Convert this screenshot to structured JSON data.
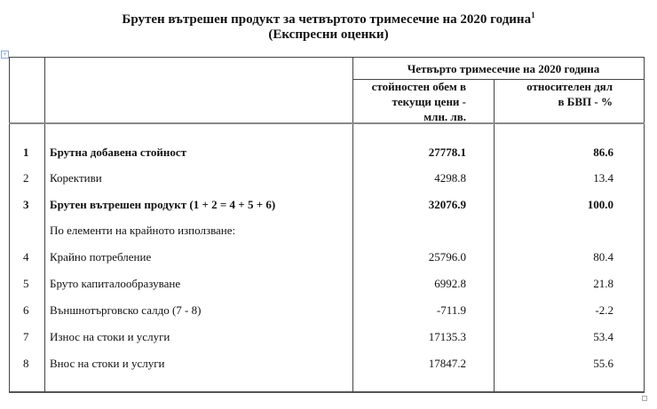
{
  "title": {
    "line1": "Брутен вътрешен продукт за четвъртото тримесечие на 2020 година",
    "footnote_mark": "1",
    "line2": "(Експресни оценки)"
  },
  "table": {
    "group_header": "Четвърто тримесечие на 2020 година",
    "col1_header": [
      "стойностен обем в",
      "текущи цени -",
      "млн. лв."
    ],
    "col2_header": [
      "относителен дял",
      "в БВП - %"
    ],
    "rows": [
      {
        "num": "1",
        "label": "Брутна добавена стойност",
        "value": "27778.1",
        "share": "86.6",
        "bold": true
      },
      {
        "num": "2",
        "label": "Корективи",
        "value": "4298.8",
        "share": "13.4",
        "bold": false
      },
      {
        "num": "3",
        "label": "Брутен вътрешен продукт  (1 + 2 = 4 + 5 + 6)",
        "value": "32076.9",
        "share": "100.0",
        "bold": true
      },
      {
        "num": "",
        "label": "По елементи на крайното използване:",
        "value": "",
        "share": "",
        "bold": false
      },
      {
        "num": "4",
        "label": "Крайно потребление",
        "value": "25796.0",
        "share": "80.4",
        "bold": false
      },
      {
        "num": "5",
        "label": "Бруто капиталообразуване",
        "value": "6992.8",
        "share": "21.8",
        "bold": false
      },
      {
        "num": "6",
        "label": "Външнотърговско салдо (7 - 8)",
        "value": "-711.9",
        "share": "-2.2",
        "bold": false
      },
      {
        "num": "7",
        "label": "Износ на стоки и услуги",
        "value": "17135.3",
        "share": "53.4",
        "bold": false
      },
      {
        "num": "8",
        "label": "Внос на стоки и услуги",
        "value": "17847.2",
        "share": "55.6",
        "bold": false
      }
    ]
  }
}
